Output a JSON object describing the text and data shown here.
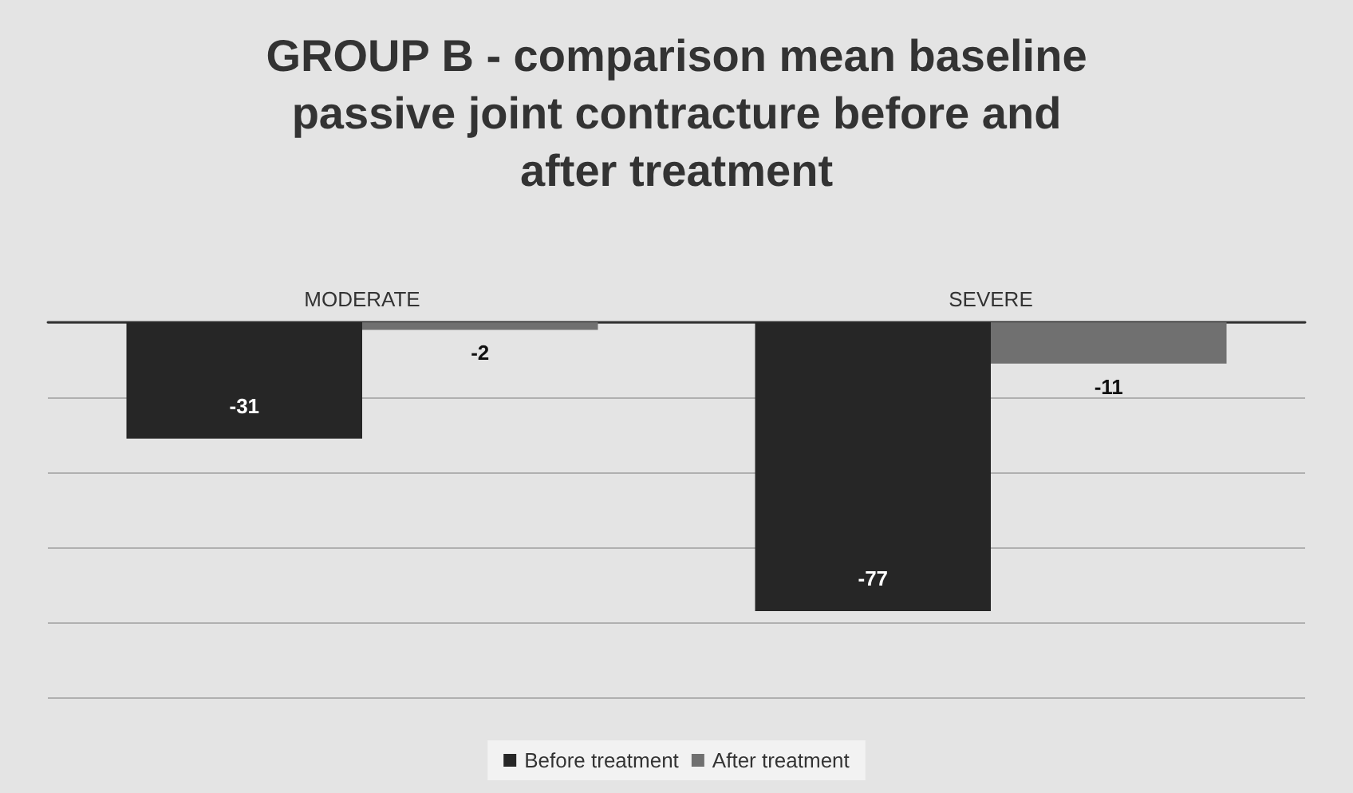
{
  "chart_data": {
    "type": "bar",
    "title": "GROUP B - comparison mean baseline passive joint contracture before and after treatment",
    "categories": [
      "MODERATE",
      "SEVERE"
    ],
    "series": [
      {
        "name": "Before treatment",
        "color": "#262626",
        "values": [
          -31,
          -77
        ]
      },
      {
        "name": "After treatment",
        "color": "#707070",
        "values": [
          -2,
          -11
        ]
      }
    ],
    "ylim": [
      -100,
      0
    ],
    "yticks": [
      {
        "value": -100,
        "label": null
      },
      {
        "value": -80,
        "label": null
      },
      {
        "value": -60,
        "label": null
      },
      {
        "value": -40,
        "label": null
      },
      {
        "value": -20,
        "label": null
      },
      {
        "value": 0,
        "label": null
      }
    ],
    "grid": true,
    "legend": "bottom",
    "data_labels": true,
    "tick_labels": "x"
  }
}
